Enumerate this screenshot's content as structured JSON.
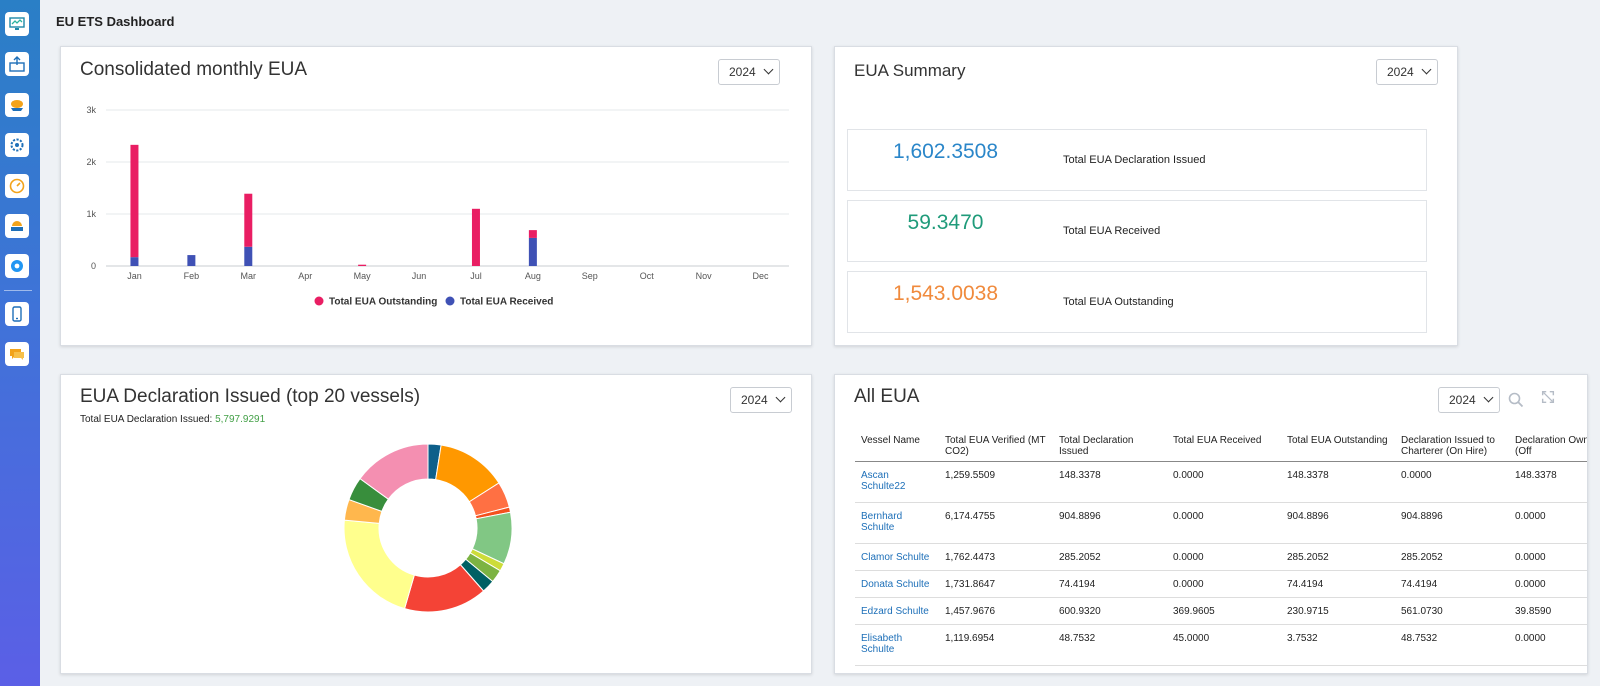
{
  "header": {
    "title": "EU ETS Dashboard"
  },
  "sidebar": {
    "icons": [
      "monitor-chart-icon",
      "inbox-upload-icon",
      "ship-cloud-icon",
      "settings-gear-icon",
      "gauge-icon",
      "ship-warning-icon",
      "settings-cog-icon",
      "mobile-device-icon",
      "chat-bubble-icon"
    ]
  },
  "monthly": {
    "title": "Consolidated monthly EUA",
    "year": "2024"
  },
  "summary": {
    "title": "EUA Summary",
    "year": "2024",
    "issued_value": "1,602.3508",
    "issued_label": "Total EUA Declaration Issued",
    "received_value": "59.3470",
    "received_label": "Total EUA Received",
    "outstanding_value": "1,543.0038",
    "outstanding_label": "Total EUA Outstanding",
    "colors": {
      "issued": "#2a86c9",
      "received": "#1f9b7a",
      "outstanding": "#f08a3c"
    }
  },
  "declaration": {
    "title": "EUA Declaration Issued (top 20 vessels)",
    "year": "2024",
    "total_label": "Total EUA Declaration Issued:",
    "total_value": "5,797.9291"
  },
  "all_eua": {
    "title": "All EUA",
    "year": "2024",
    "columns": [
      "Vessel Name",
      "Total EUA Verified (MT CO2)",
      "Total Declaration Issued",
      "Total EUA Received",
      "Total EUA Outstanding",
      "Declaration Issued to Charterer (On Hire)",
      "Declaration Owner (Off"
    ],
    "rows": [
      [
        "Ascan Schulte22",
        "1,259.5509",
        "148.3378",
        "0.0000",
        "148.3378",
        "0.0000",
        "148.3378"
      ],
      [
        "Bernhard Schulte",
        "6,174.4755",
        "904.8896",
        "0.0000",
        "904.8896",
        "904.8896",
        "0.0000"
      ],
      [
        "Clamor Schulte",
        "1,762.4473",
        "285.2052",
        "0.0000",
        "285.2052",
        "285.2052",
        "0.0000"
      ],
      [
        "Donata Schulte",
        "1,731.8647",
        "74.4194",
        "0.0000",
        "74.4194",
        "74.4194",
        "0.0000"
      ],
      [
        "Edzard Schulte",
        "1,457.9676",
        "600.9320",
        "369.9605",
        "230.9715",
        "561.0730",
        "39.8590"
      ],
      [
        "Elisabeth Schulte",
        "1,119.6954",
        "48.7532",
        "45.0000",
        "3.7532",
        "48.7532",
        "0.0000"
      ]
    ]
  },
  "chart_data": [
    {
      "type": "bar",
      "title": "Consolidated monthly EUA",
      "stacked": true,
      "categories": [
        "Jan",
        "Feb",
        "Mar",
        "Apr",
        "May",
        "Jun",
        "Jul",
        "Aug",
        "Sep",
        "Oct",
        "Nov",
        "Dec"
      ],
      "series": [
        {
          "name": "Total EUA Received",
          "color": "#3f51b5",
          "values": [
            170,
            210,
            370,
            0,
            0,
            0,
            0,
            540,
            0,
            0,
            0,
            0
          ]
        },
        {
          "name": "Total EUA Outstanding",
          "color": "#e91e63",
          "values": [
            2160,
            0,
            1020,
            0,
            25,
            0,
            1100,
            150,
            0,
            0,
            0,
            0
          ]
        }
      ],
      "yticks": [
        "0",
        "1k",
        "2k",
        "3k"
      ],
      "ylim": [
        0,
        3000
      ],
      "legend": [
        "Total EUA Outstanding",
        "Total EUA Received"
      ]
    },
    {
      "type": "pie",
      "title": "EUA Declaration Issued (top 20 vessels)",
      "donut": true,
      "slices": [
        {
          "value": 2.5,
          "color": "#0d5f8a"
        },
        {
          "value": 13.5,
          "color": "#ff9800"
        },
        {
          "value": 5,
          "color": "#ff7043"
        },
        {
          "value": 1,
          "color": "#f4511e"
        },
        {
          "value": 10,
          "color": "#81c784"
        },
        {
          "value": 1.5,
          "color": "#cddc39"
        },
        {
          "value": 2.5,
          "color": "#7cb342"
        },
        {
          "value": 2.5,
          "color": "#006064"
        },
        {
          "value": 16,
          "color": "#f44336"
        },
        {
          "value": 22,
          "color": "#ffff8d"
        },
        {
          "value": 4,
          "color": "#ffb74d"
        },
        {
          "value": 4.5,
          "color": "#388e3c"
        },
        {
          "value": 15,
          "color": "#f48fb1"
        }
      ]
    }
  ]
}
